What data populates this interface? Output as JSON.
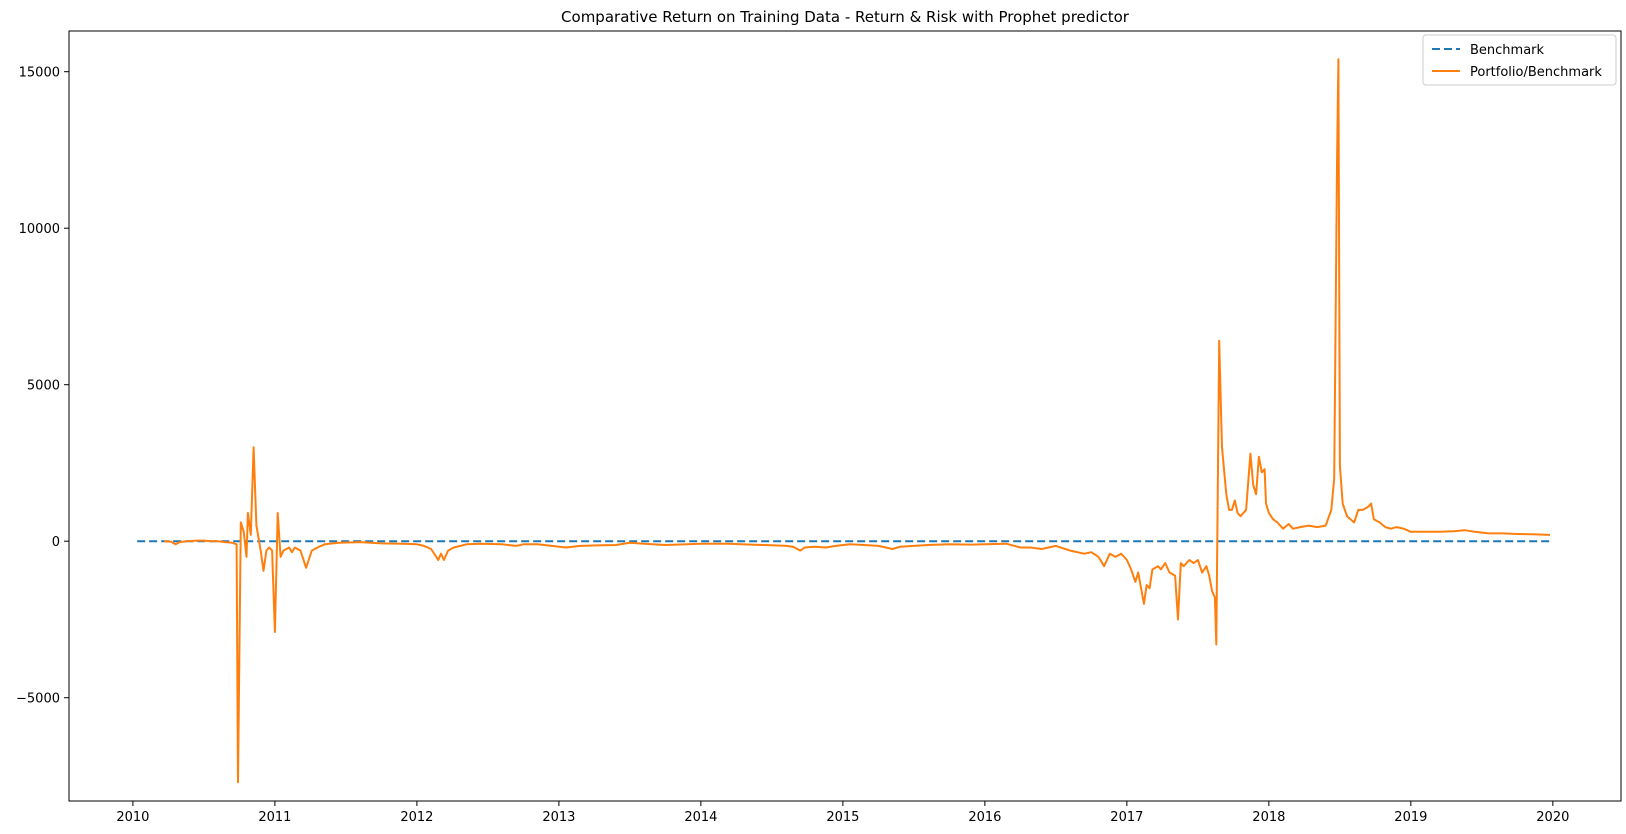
{
  "chart_data": {
    "type": "line",
    "title": "Comparative Return on Training Data - Return & Risk with Prophet predictor",
    "xlabel": "",
    "ylabel": "",
    "x_range": [
      "2009-07",
      "2020-06"
    ],
    "xlim": [
      2009.55,
      2020.48
    ],
    "ylim": [
      -8300,
      16300
    ],
    "x_ticks": [
      2010,
      2011,
      2012,
      2013,
      2014,
      2015,
      2016,
      2017,
      2018,
      2019,
      2020
    ],
    "x_tick_labels": [
      "2010",
      "2011",
      "2012",
      "2013",
      "2014",
      "2015",
      "2016",
      "2017",
      "2018",
      "2019",
      "2020"
    ],
    "y_ticks": [
      -5000,
      0,
      5000,
      10000,
      15000
    ],
    "y_tick_labels": [
      "−5000",
      "0",
      "5000",
      "10000",
      "15000"
    ],
    "grid": false,
    "legend_position": "top-right",
    "series": [
      {
        "name": "Benchmark",
        "style": "dashed",
        "color": "#1f77b4",
        "points": [
          [
            2010.03,
            0
          ],
          [
            2019.98,
            0
          ]
        ]
      },
      {
        "name": "Portfolio/Benchmark",
        "style": "solid",
        "color": "#ff7f0e",
        "points": [
          [
            2010.22,
            0
          ],
          [
            2010.27,
            -20
          ],
          [
            2010.3,
            -100
          ],
          [
            2010.33,
            -30
          ],
          [
            2010.38,
            0
          ],
          [
            2010.45,
            20
          ],
          [
            2010.5,
            20
          ],
          [
            2010.55,
            0
          ],
          [
            2010.6,
            0
          ],
          [
            2010.65,
            -30
          ],
          [
            2010.7,
            -50
          ],
          [
            2010.73,
            -100
          ],
          [
            2010.74,
            -7700
          ],
          [
            2010.76,
            600
          ],
          [
            2010.78,
            300
          ],
          [
            2010.8,
            -500
          ],
          [
            2010.81,
            900
          ],
          [
            2010.83,
            200
          ],
          [
            2010.85,
            3000
          ],
          [
            2010.87,
            500
          ],
          [
            2010.9,
            -300
          ],
          [
            2010.92,
            -950
          ],
          [
            2010.94,
            -300
          ],
          [
            2010.96,
            -200
          ],
          [
            2010.98,
            -300
          ],
          [
            2011.0,
            -2900
          ],
          [
            2011.02,
            900
          ],
          [
            2011.04,
            -500
          ],
          [
            2011.06,
            -300
          ],
          [
            2011.1,
            -200
          ],
          [
            2011.12,
            -350
          ],
          [
            2011.14,
            -200
          ],
          [
            2011.18,
            -300
          ],
          [
            2011.22,
            -850
          ],
          [
            2011.26,
            -300
          ],
          [
            2011.3,
            -200
          ],
          [
            2011.35,
            -100
          ],
          [
            2011.45,
            -50
          ],
          [
            2011.6,
            -30
          ],
          [
            2011.75,
            -70
          ],
          [
            2011.9,
            -80
          ],
          [
            2012.0,
            -100
          ],
          [
            2012.05,
            -150
          ],
          [
            2012.1,
            -250
          ],
          [
            2012.13,
            -450
          ],
          [
            2012.15,
            -600
          ],
          [
            2012.17,
            -400
          ],
          [
            2012.19,
            -600
          ],
          [
            2012.22,
            -300
          ],
          [
            2012.26,
            -200
          ],
          [
            2012.35,
            -100
          ],
          [
            2012.45,
            -80
          ],
          [
            2012.6,
            -100
          ],
          [
            2012.7,
            -150
          ],
          [
            2012.75,
            -100
          ],
          [
            2012.85,
            -100
          ],
          [
            2012.95,
            -150
          ],
          [
            2013.05,
            -200
          ],
          [
            2013.15,
            -150
          ],
          [
            2013.3,
            -130
          ],
          [
            2013.4,
            -120
          ],
          [
            2013.5,
            -50
          ],
          [
            2013.6,
            -80
          ],
          [
            2013.75,
            -120
          ],
          [
            2013.9,
            -100
          ],
          [
            2014.0,
            -80
          ],
          [
            2014.2,
            -80
          ],
          [
            2014.35,
            -110
          ],
          [
            2014.5,
            -130
          ],
          [
            2014.6,
            -150
          ],
          [
            2014.65,
            -180
          ],
          [
            2014.7,
            -300
          ],
          [
            2014.73,
            -200
          ],
          [
            2014.8,
            -180
          ],
          [
            2014.88,
            -200
          ],
          [
            2014.95,
            -150
          ],
          [
            2015.05,
            -100
          ],
          [
            2015.15,
            -120
          ],
          [
            2015.25,
            -150
          ],
          [
            2015.35,
            -250
          ],
          [
            2015.4,
            -180
          ],
          [
            2015.5,
            -150
          ],
          [
            2015.6,
            -120
          ],
          [
            2015.75,
            -100
          ],
          [
            2015.9,
            -110
          ],
          [
            2016.0,
            -100
          ],
          [
            2016.15,
            -80
          ],
          [
            2016.25,
            -200
          ],
          [
            2016.32,
            -200
          ],
          [
            2016.4,
            -250
          ],
          [
            2016.5,
            -150
          ],
          [
            2016.6,
            -300
          ],
          [
            2016.7,
            -400
          ],
          [
            2016.75,
            -350
          ],
          [
            2016.8,
            -500
          ],
          [
            2016.84,
            -800
          ],
          [
            2016.88,
            -400
          ],
          [
            2016.92,
            -500
          ],
          [
            2016.96,
            -400
          ],
          [
            2017.0,
            -600
          ],
          [
            2017.03,
            -900
          ],
          [
            2017.06,
            -1300
          ],
          [
            2017.08,
            -1000
          ],
          [
            2017.12,
            -2000
          ],
          [
            2017.14,
            -1400
          ],
          [
            2017.16,
            -1500
          ],
          [
            2017.18,
            -900
          ],
          [
            2017.22,
            -800
          ],
          [
            2017.24,
            -900
          ],
          [
            2017.27,
            -700
          ],
          [
            2017.3,
            -1000
          ],
          [
            2017.34,
            -1100
          ],
          [
            2017.36,
            -2500
          ],
          [
            2017.38,
            -700
          ],
          [
            2017.4,
            -800
          ],
          [
            2017.44,
            -600
          ],
          [
            2017.47,
            -700
          ],
          [
            2017.5,
            -600
          ],
          [
            2017.53,
            -1000
          ],
          [
            2017.56,
            -800
          ],
          [
            2017.58,
            -1100
          ],
          [
            2017.6,
            -1600
          ],
          [
            2017.62,
            -1800
          ],
          [
            2017.63,
            -3300
          ],
          [
            2017.65,
            6400
          ],
          [
            2017.67,
            3000
          ],
          [
            2017.7,
            1500
          ],
          [
            2017.72,
            1000
          ],
          [
            2017.74,
            1000
          ],
          [
            2017.76,
            1300
          ],
          [
            2017.78,
            900
          ],
          [
            2017.8,
            800
          ],
          [
            2017.84,
            1000
          ],
          [
            2017.87,
            2800
          ],
          [
            2017.89,
            1800
          ],
          [
            2017.91,
            1500
          ],
          [
            2017.93,
            2700
          ],
          [
            2017.95,
            2200
          ],
          [
            2017.97,
            2300
          ],
          [
            2017.98,
            1200
          ],
          [
            2018.0,
            900
          ],
          [
            2018.03,
            700
          ],
          [
            2018.06,
            600
          ],
          [
            2018.08,
            500
          ],
          [
            2018.1,
            400
          ],
          [
            2018.14,
            550
          ],
          [
            2018.17,
            400
          ],
          [
            2018.22,
            450
          ],
          [
            2018.28,
            500
          ],
          [
            2018.34,
            450
          ],
          [
            2018.4,
            500
          ],
          [
            2018.44,
            1000
          ],
          [
            2018.46,
            2000
          ],
          [
            2018.47,
            7000
          ],
          [
            2018.48,
            12000
          ],
          [
            2018.49,
            15400
          ],
          [
            2018.5,
            2400
          ],
          [
            2018.52,
            1200
          ],
          [
            2018.55,
            800
          ],
          [
            2018.6,
            600
          ],
          [
            2018.63,
            1000
          ],
          [
            2018.66,
            1000
          ],
          [
            2018.7,
            1100
          ],
          [
            2018.72,
            1200
          ],
          [
            2018.74,
            700
          ],
          [
            2018.78,
            600
          ],
          [
            2018.82,
            450
          ],
          [
            2018.86,
            400
          ],
          [
            2018.9,
            450
          ],
          [
            2018.95,
            400
          ],
          [
            2019.0,
            300
          ],
          [
            2019.1,
            300
          ],
          [
            2019.2,
            300
          ],
          [
            2019.3,
            320
          ],
          [
            2019.38,
            350
          ],
          [
            2019.45,
            300
          ],
          [
            2019.55,
            250
          ],
          [
            2019.65,
            250
          ],
          [
            2019.75,
            230
          ],
          [
            2019.85,
            220
          ],
          [
            2019.98,
            200
          ]
        ]
      }
    ]
  }
}
